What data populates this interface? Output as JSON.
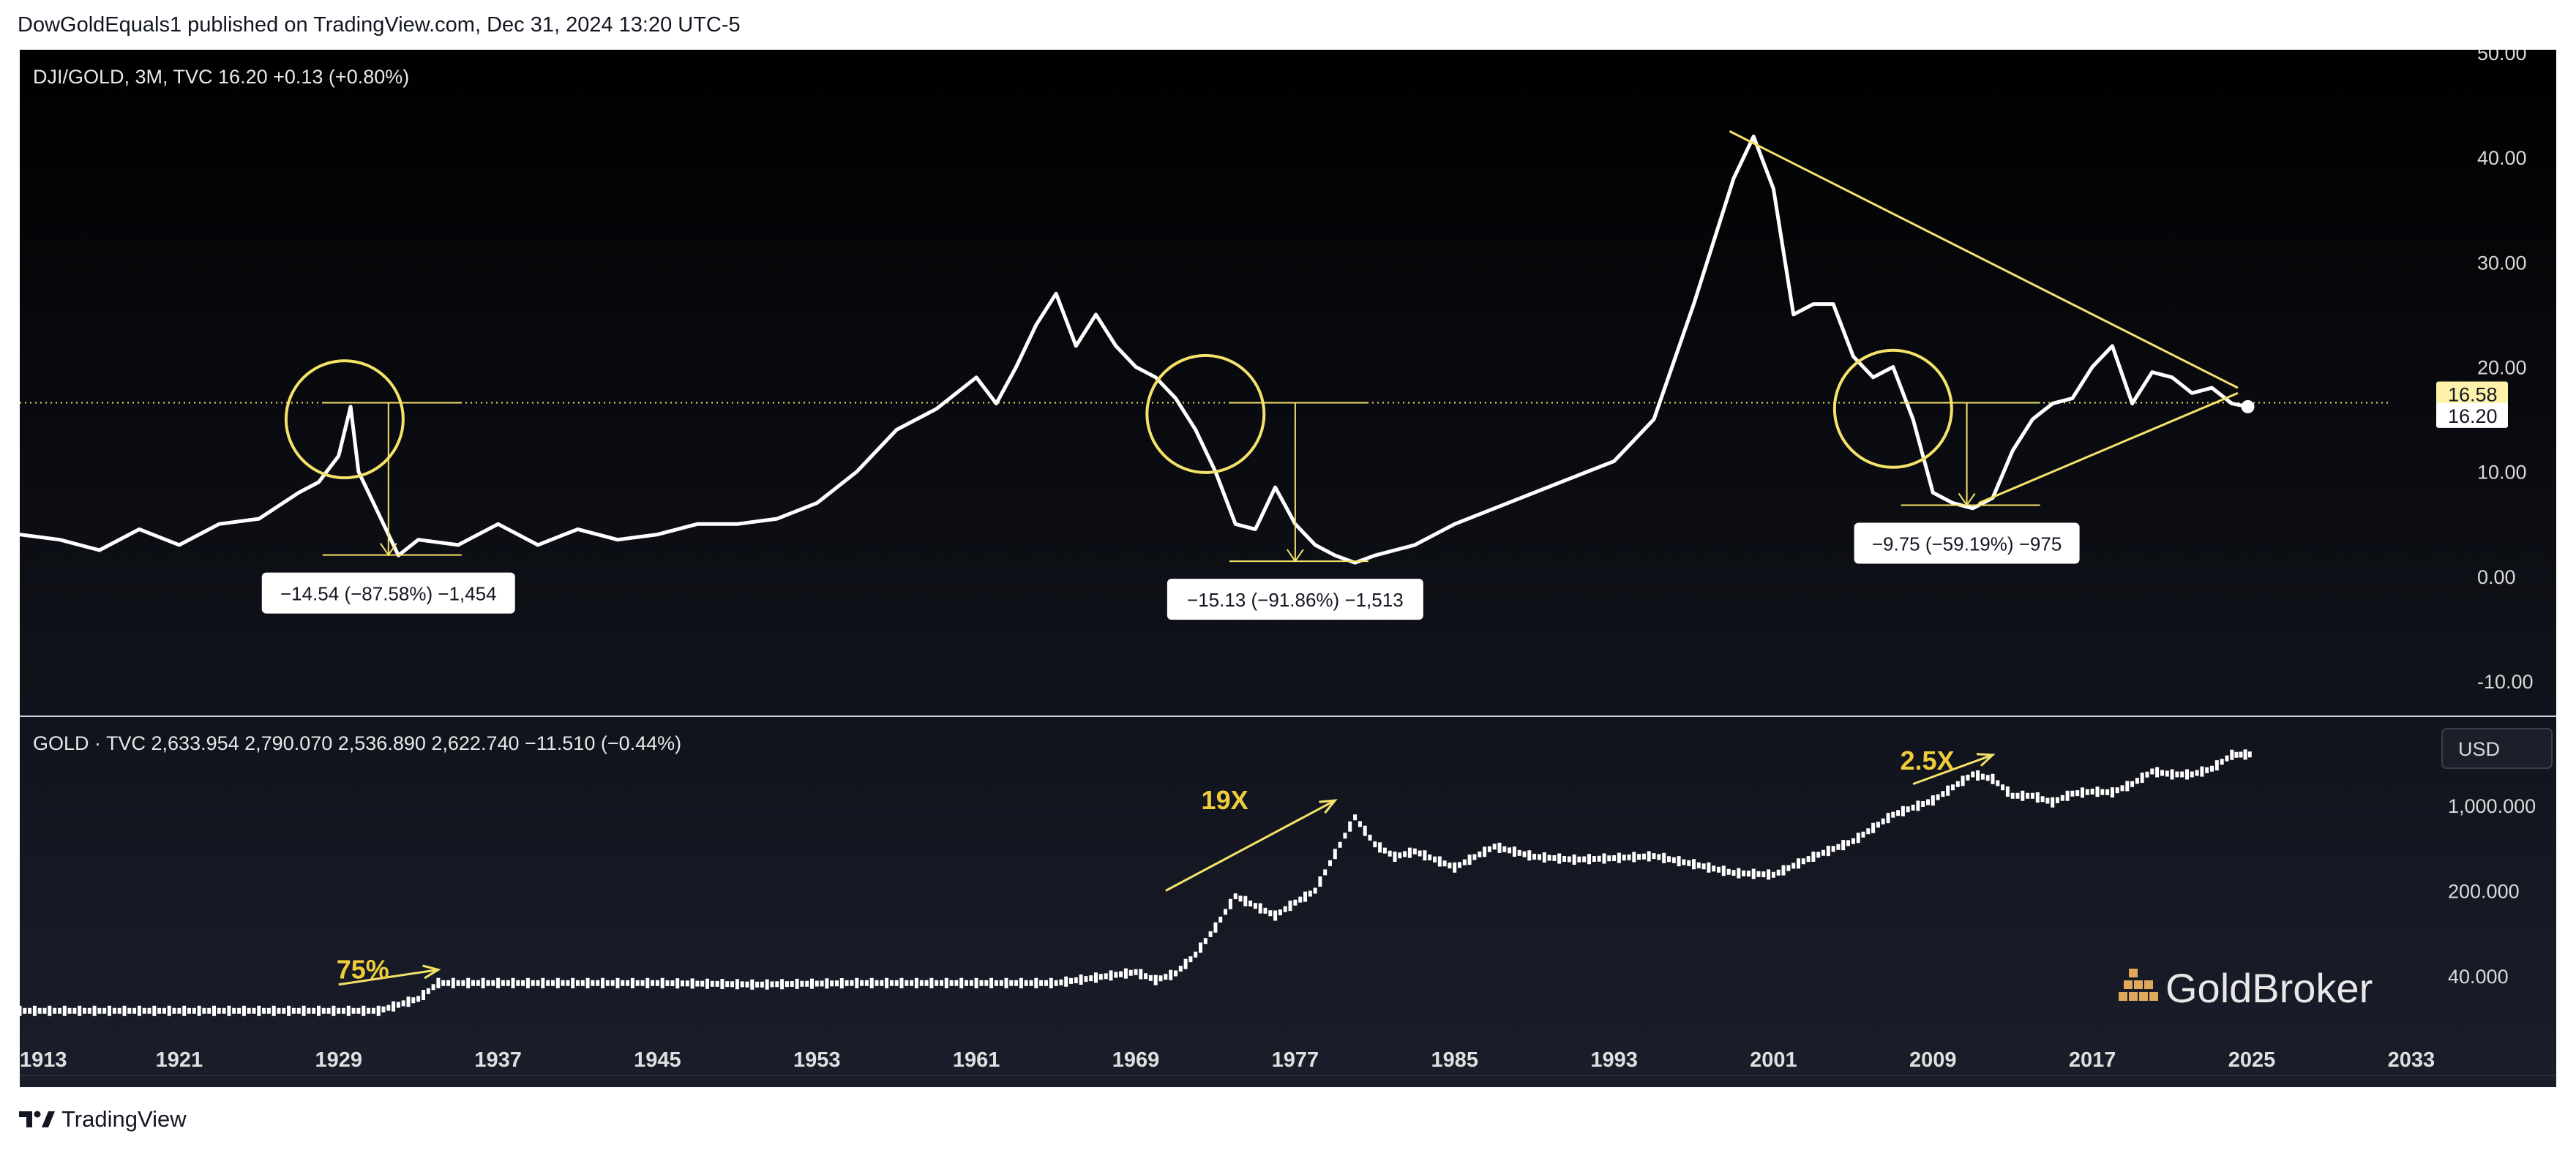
{
  "header": {
    "published": "DowGoldEquals1 published on TradingView.com, Dec 31, 2024 13:20 UTC-5"
  },
  "footer": {
    "brand": "TradingView",
    "logo_icon": "tradingview-logo-icon"
  },
  "watermark": {
    "text": "GoldBroker",
    "icon": "gold-bars-icon"
  },
  "colors": {
    "background": "#131722",
    "line": "#ffffff",
    "annotation": "#f5e26b",
    "label_text": "#f0cd3c"
  },
  "chart_data": [
    {
      "type": "line",
      "legend": "DJI/GOLD, 3M, TVC  16.20  +0.13 (+0.80%)",
      "ylim": [
        -15,
        50
      ],
      "y_ticks": [
        "50.00",
        "40.00",
        "30.00",
        "20.00",
        "10.00",
        "0.00",
        "-10.00"
      ],
      "y_tick_values": [
        50,
        40,
        30,
        20,
        10,
        0,
        -10
      ],
      "price_labels": [
        {
          "text": "16.58",
          "value": 16.58,
          "style": "highlight"
        },
        {
          "text": "16.20",
          "value": 16.2,
          "style": "plain"
        }
      ],
      "horizontal_line": 16.58,
      "series": [
        {
          "x": [
            1913,
            1915,
            1917,
            1919,
            1921,
            1923,
            1925,
            1927,
            1928,
            1929,
            1929.6,
            1930,
            1931,
            1932,
            1933,
            1935,
            1937,
            1939,
            1941,
            1943,
            1945,
            1947,
            1949,
            1951,
            1953,
            1955,
            1957,
            1959,
            1961,
            1962,
            1963,
            1964,
            1965,
            1966,
            1967,
            1968,
            1969,
            1970,
            1971,
            1972,
            1973,
            1974,
            1975,
            1976,
            1977,
            1978,
            1979,
            1980,
            1981,
            1983,
            1985,
            1987,
            1989,
            1991,
            1993,
            1995,
            1997,
            1998,
            1999,
            2000,
            2001,
            2002,
            2003,
            2004,
            2005,
            2006,
            2007,
            2008,
            2009,
            2010,
            2011,
            2012,
            2013,
            2014,
            2015,
            2016,
            2017,
            2018,
            2019,
            2020,
            2021,
            2022,
            2023,
            2024,
            2024.8
          ],
          "values": [
            4,
            3.5,
            2.5,
            4.5,
            3,
            5,
            5.5,
            8,
            9,
            11.5,
            16.2,
            10,
            6,
            2.0,
            3.5,
            3,
            5,
            3,
            4.5,
            3.5,
            4,
            5,
            5,
            5.5,
            7,
            10,
            14,
            16,
            19,
            16.5,
            20,
            24,
            27,
            22,
            25,
            22,
            20,
            19,
            17,
            14,
            10,
            5,
            4.5,
            8.5,
            5,
            3,
            2,
            1.3,
            2,
            3,
            5,
            6.5,
            8,
            9.5,
            11,
            15,
            26,
            32,
            38,
            42,
            37,
            25,
            26,
            26,
            21,
            19,
            20,
            15,
            8,
            7,
            6.5,
            7.5,
            12,
            15,
            16.5,
            17,
            20,
            22,
            16.5,
            19.5,
            19,
            17.5,
            18,
            16.5,
            16.2
          ]
        }
      ],
      "drawdowns": [
        {
          "label": "−14.54 (−87.58%) −1,454",
          "x": 1931.5,
          "from": 16.58,
          "to": 2.04
        },
        {
          "label": "−15.13 (−91.86%) −1,513",
          "x": 1977,
          "from": 16.58,
          "to": 1.45
        },
        {
          "label": "−9.75 (−59.19%) −975",
          "x": 2010.7,
          "from": 16.58,
          "to": 6.8
        }
      ],
      "circles": [
        {
          "x": 1929.3,
          "y": 15
        },
        {
          "x": 1972.5,
          "y": 15.5
        },
        {
          "x": 2007,
          "y": 16
        }
      ],
      "trendlines": [
        {
          "from": [
            1998.8,
            42.5
          ],
          "to": [
            2024.3,
            18
          ]
        },
        {
          "from": [
            2011.3,
            7
          ],
          "to": [
            2024.3,
            17.5
          ]
        }
      ]
    },
    {
      "type": "line",
      "legend": "GOLD · TVC  2,633.954  2,790.070  2,536.890  2,622.740  −11.510 (−0.44%)",
      "scale": "log",
      "currency_button": "USD",
      "y_ticks": [
        "1,000.000",
        "200.000",
        "40.000"
      ],
      "y_tick_values": [
        1000,
        200,
        40
      ],
      "series": [
        {
          "x": [
            1913,
            1917,
            1921,
            1925,
            1929,
            1931,
            1933,
            1933.5,
            1934,
            1940,
            1945,
            1950,
            1955,
            1960,
            1965,
            1969,
            1970,
            1971,
            1972,
            1973,
            1974,
            1975,
            1976,
            1977,
            1978,
            1979,
            1980,
            1981,
            1982,
            1983,
            1985,
            1987,
            1989,
            1991,
            1993,
            1995,
            1997,
            1999,
            2001,
            2003,
            2005,
            2007,
            2009,
            2011,
            2012,
            2013,
            2014,
            2015,
            2016,
            2017,
            2018,
            2019,
            2020,
            2021,
            2022,
            2023,
            2024,
            2024.9
          ],
          "values": [
            20.67,
            20.67,
            20.67,
            20.67,
            20.67,
            20.67,
            26,
            30,
            35,
            35,
            35,
            34,
            35,
            35,
            35,
            43,
            37,
            42,
            60,
            100,
            180,
            150,
            125,
            160,
            200,
            400,
            800,
            480,
            380,
            420,
            310,
            460,
            380,
            360,
            370,
            385,
            330,
            280,
            270,
            380,
            510,
            840,
            1100,
            1800,
            1650,
            1200,
            1200,
            1060,
            1250,
            1300,
            1280,
            1500,
            1900,
            1800,
            1800,
            2000,
            2600,
            2622.74
          ]
        }
      ],
      "annotations": [
        {
          "label": "75%",
          "from": [
            1929,
            34
          ],
          "to": [
            1934,
            45
          ]
        },
        {
          "label": "19X",
          "from": [
            1970.5,
            200
          ],
          "to": [
            1979,
            1100
          ]
        },
        {
          "label": "2.5X",
          "from": [
            2008,
            1500
          ],
          "to": [
            2012,
            2600
          ]
        }
      ]
    }
  ],
  "x_axis": {
    "ticks": [
      "1913",
      "1921",
      "1929",
      "1937",
      "1945",
      "1953",
      "1961",
      "1969",
      "1977",
      "1985",
      "1993",
      "2001",
      "2009",
      "2017",
      "2025",
      "2033"
    ],
    "tick_values": [
      1913,
      1921,
      1929,
      1937,
      1945,
      1953,
      1961,
      1969,
      1977,
      1985,
      1993,
      2001,
      2009,
      2017,
      2025,
      2033
    ]
  }
}
